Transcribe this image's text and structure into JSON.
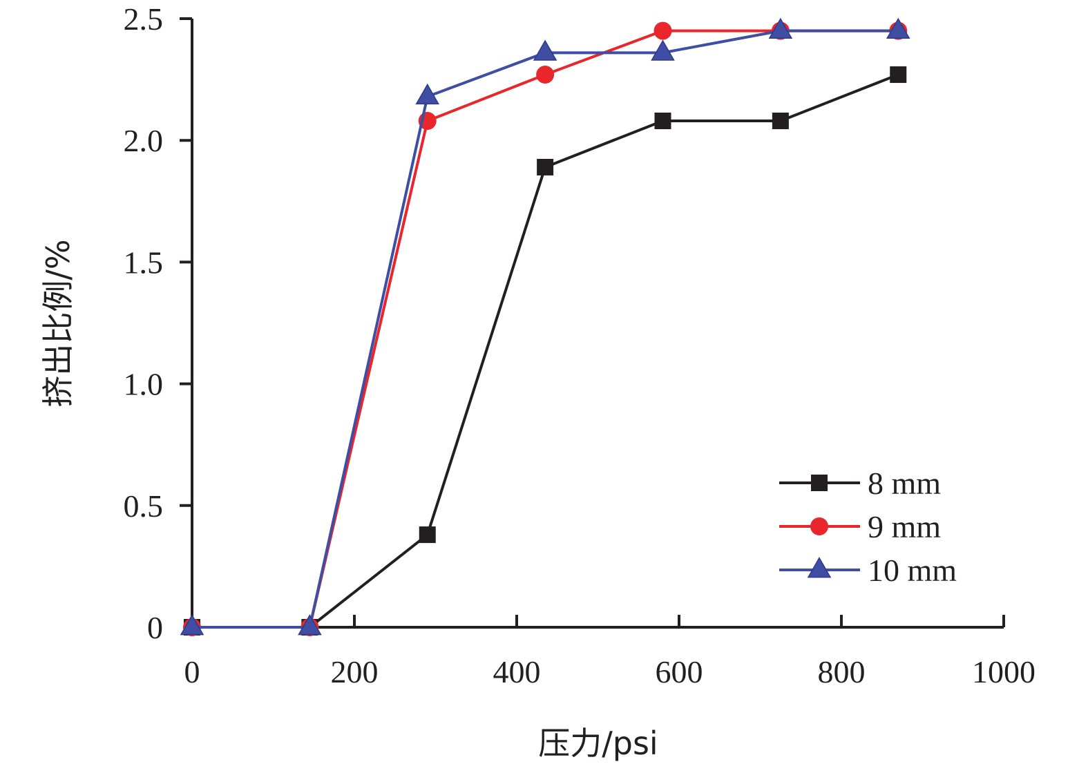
{
  "chart_data": {
    "type": "line",
    "xlabel": "压力/psi",
    "ylabel": "挤出比例/%",
    "xlim": [
      0,
      1000
    ],
    "ylim": [
      0,
      2.5
    ],
    "x_ticks": [
      0,
      200,
      400,
      600,
      800,
      1000
    ],
    "y_ticks": [
      0,
      0.5,
      1.0,
      1.5,
      2.0,
      2.5
    ],
    "x_tick_labels": [
      "0",
      "200",
      "400",
      "600",
      "800",
      "1000"
    ],
    "y_tick_labels": [
      "0",
      "0.5",
      "1.0",
      "1.5",
      "2.0",
      "2.5"
    ],
    "grid": false,
    "legend_position": "bottom-right",
    "series": [
      {
        "name": "8 mm",
        "color": "#231f20",
        "marker": "square",
        "x": [
          0,
          145,
          290,
          435,
          580,
          725,
          870
        ],
        "values": [
          0,
          0,
          0.38,
          1.89,
          2.08,
          2.08,
          2.27
        ]
      },
      {
        "name": "9 mm",
        "color": "#e8262b",
        "marker": "circle",
        "x": [
          0,
          145,
          290,
          435,
          580,
          725,
          870
        ],
        "values": [
          0,
          0,
          2.08,
          2.27,
          2.45,
          2.45,
          2.45
        ]
      },
      {
        "name": "10 mm",
        "color": "#3f4ea3",
        "marker": "triangle",
        "x": [
          0,
          145,
          290,
          435,
          580,
          725,
          870
        ],
        "values": [
          0,
          0,
          2.18,
          2.36,
          2.36,
          2.45,
          2.45
        ]
      }
    ]
  }
}
